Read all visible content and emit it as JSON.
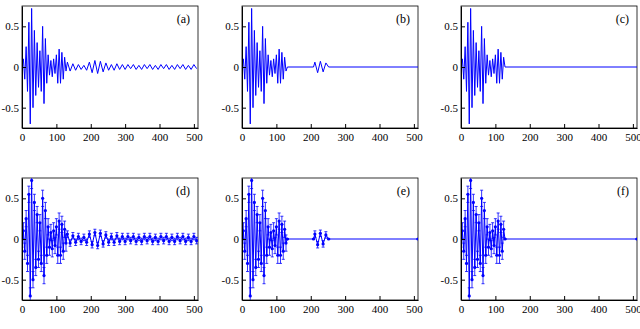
{
  "chart_data": [
    {
      "type": "line",
      "label": "(a)",
      "color": "#0000ff",
      "marker": "none",
      "xlim": [
        0,
        512
      ],
      "ylim": [
        -0.75,
        0.75
      ],
      "xticks": [
        0,
        100,
        200,
        300,
        400,
        500
      ],
      "yticks": [
        -0.5,
        0,
        0.5
      ],
      "x": [
        0,
        4,
        8,
        12,
        16,
        20,
        24,
        28,
        32,
        36,
        40,
        44,
        48,
        52,
        56,
        60,
        64,
        68,
        72,
        76,
        80,
        84,
        88,
        92,
        96,
        100,
        104,
        108,
        112,
        116,
        120,
        124,
        128,
        132,
        140,
        148,
        156,
        164,
        172,
        180,
        188,
        196,
        204,
        212,
        220,
        228,
        236,
        244,
        252,
        260,
        268,
        276,
        284,
        292,
        300,
        308,
        316,
        324,
        332,
        340,
        348,
        356,
        364,
        372,
        380,
        388,
        396,
        404,
        412,
        420,
        428,
        436,
        444,
        452,
        460,
        468,
        476,
        484,
        492,
        500,
        508
      ],
      "values": [
        0,
        0.1,
        -0.15,
        0.25,
        -0.3,
        0.55,
        -0.7,
        0.72,
        -0.5,
        0.45,
        -0.35,
        0.3,
        -0.25,
        0.2,
        -0.3,
        0.5,
        -0.45,
        0.35,
        -0.2,
        0.15,
        -0.1,
        0.08,
        -0.12,
        0.1,
        -0.08,
        0.15,
        -0.2,
        0.22,
        -0.2,
        0.18,
        -0.15,
        0.12,
        -0.05,
        0.06,
        -0.05,
        0.04,
        -0.04,
        0.03,
        -0.03,
        0.02,
        -0.04,
        0.06,
        -0.07,
        0.08,
        -0.08,
        0.07,
        -0.06,
        0.05,
        -0.04,
        0.03,
        -0.04,
        0.04,
        -0.03,
        0.03,
        -0.03,
        0.03,
        -0.02,
        0.03,
        -0.03,
        0.02,
        -0.03,
        0.03,
        -0.02,
        0.03,
        -0.03,
        0.02,
        -0.03,
        0.03,
        -0.02,
        0.03,
        -0.03,
        0.02,
        -0.03,
        0.03,
        -0.02,
        0.03,
        -0.03,
        0.02,
        -0.03,
        0.03,
        -0.02
      ]
    },
    {
      "type": "line",
      "label": "(b)",
      "color": "#0000ff",
      "marker": "none",
      "xlim": [
        0,
        512
      ],
      "ylim": [
        -0.75,
        0.75
      ],
      "xticks": [
        0,
        100,
        200,
        300,
        400,
        500
      ],
      "yticks": [
        -0.5,
        0,
        0.5
      ],
      "x": [
        0,
        4,
        8,
        12,
        16,
        20,
        24,
        28,
        32,
        36,
        40,
        44,
        48,
        52,
        56,
        60,
        64,
        68,
        72,
        76,
        80,
        84,
        88,
        92,
        96,
        100,
        104,
        108,
        112,
        116,
        120,
        124,
        128,
        132,
        208,
        212,
        220,
        228,
        236,
        244,
        252,
        512
      ],
      "values": [
        0,
        0.1,
        -0.15,
        0.25,
        -0.3,
        0.55,
        -0.7,
        0.72,
        -0.5,
        0.45,
        -0.35,
        0.3,
        -0.25,
        0.2,
        -0.3,
        0.5,
        -0.45,
        0.35,
        -0.2,
        0.15,
        -0.1,
        0.08,
        -0.12,
        0.1,
        -0.08,
        0.15,
        -0.2,
        0.22,
        -0.2,
        0.18,
        -0.15,
        0.12,
        -0.05,
        0,
        0,
        0.06,
        -0.07,
        0.07,
        -0.06,
        0.05,
        0,
        0
      ]
    },
    {
      "type": "line",
      "label": "(c)",
      "color": "#0000ff",
      "marker": "none",
      "xlim": [
        0,
        512
      ],
      "ylim": [
        -0.75,
        0.75
      ],
      "xticks": [
        0,
        100,
        200,
        300,
        400,
        500
      ],
      "yticks": [
        -0.5,
        0,
        0.5
      ],
      "x": [
        0,
        4,
        8,
        12,
        16,
        20,
        24,
        28,
        32,
        36,
        40,
        44,
        48,
        52,
        56,
        60,
        64,
        68,
        72,
        76,
        80,
        84,
        88,
        92,
        96,
        100,
        104,
        108,
        112,
        116,
        120,
        124,
        128,
        512
      ],
      "values": [
        0,
        0.1,
        -0.15,
        0.25,
        -0.3,
        0.55,
        -0.7,
        0.72,
        -0.5,
        0.45,
        -0.35,
        0.3,
        -0.25,
        0.2,
        -0.3,
        0.5,
        -0.45,
        0.35,
        -0.2,
        0.15,
        -0.1,
        0.08,
        -0.12,
        0.1,
        -0.08,
        0.15,
        -0.2,
        0.22,
        -0.2,
        0.18,
        -0.15,
        0.12,
        0,
        0
      ]
    },
    {
      "type": "line",
      "label": "(d)",
      "color": "#0000ff",
      "marker": "point",
      "xlim": [
        0,
        512
      ],
      "ylim": [
        -0.75,
        0.75
      ],
      "xticks": [
        0,
        100,
        200,
        300,
        400,
        500
      ],
      "yticks": [
        -0.5,
        0,
        0.5
      ],
      "x": [
        0,
        4,
        8,
        12,
        16,
        20,
        24,
        28,
        32,
        36,
        40,
        44,
        48,
        52,
        56,
        60,
        64,
        68,
        72,
        76,
        80,
        84,
        88,
        92,
        96,
        100,
        104,
        108,
        112,
        116,
        120,
        124,
        128,
        132,
        140,
        148,
        156,
        164,
        172,
        180,
        188,
        196,
        204,
        212,
        220,
        228,
        236,
        244,
        252,
        260,
        268,
        276,
        284,
        292,
        300,
        308,
        316,
        324,
        332,
        340,
        348,
        356,
        364,
        372,
        380,
        388,
        396,
        404,
        412,
        420,
        428,
        436,
        444,
        452,
        460,
        468,
        476,
        484,
        492,
        500,
        508
      ],
      "values": [
        0,
        0.1,
        -0.15,
        0.25,
        -0.3,
        0.55,
        -0.7,
        0.72,
        -0.5,
        0.45,
        -0.35,
        0.3,
        -0.25,
        0.2,
        -0.3,
        0.5,
        -0.45,
        0.35,
        -0.2,
        0.15,
        -0.1,
        0.08,
        -0.12,
        0.1,
        -0.08,
        0.15,
        -0.2,
        0.22,
        -0.2,
        0.18,
        -0.15,
        0.12,
        -0.05,
        0.06,
        -0.05,
        0.04,
        -0.04,
        0.03,
        -0.03,
        0.02,
        -0.04,
        0.06,
        -0.07,
        0.08,
        -0.08,
        0.07,
        -0.06,
        0.05,
        -0.04,
        0.03,
        -0.04,
        0.04,
        -0.03,
        0.03,
        -0.03,
        0.03,
        -0.02,
        0.03,
        -0.03,
        0.02,
        -0.03,
        0.03,
        -0.02,
        0.03,
        -0.03,
        0.02,
        -0.03,
        0.03,
        -0.02,
        0.03,
        -0.03,
        0.02,
        -0.03,
        0.03,
        -0.02,
        0.03,
        -0.03,
        0.02,
        -0.03,
        0.03,
        -0.02
      ],
      "errors": [
        0.1,
        0.1,
        0.1,
        0.1,
        0.1,
        0.1,
        0.1,
        0.1,
        0.1,
        0.1,
        0.1,
        0.1,
        0.1,
        0.1,
        0.1,
        0.1,
        0.1,
        0.1,
        0.1,
        0.1,
        0.1,
        0.1,
        0.1,
        0.1,
        0.1,
        0.1,
        0.1,
        0.1,
        0.1,
        0.1,
        0.1,
        0.1,
        0.1,
        0.04,
        0.04,
        0.04,
        0.04,
        0.04,
        0.04,
        0.04,
        0.04,
        0.04,
        0.04,
        0.04,
        0.04,
        0.04,
        0.04,
        0.04,
        0.04,
        0.04,
        0.04,
        0.04,
        0.04,
        0.04,
        0.04,
        0.04,
        0.04,
        0.04,
        0.04,
        0.04,
        0.04,
        0.04,
        0.04,
        0.04,
        0.04,
        0.04,
        0.04,
        0.04,
        0.04,
        0.04,
        0.04,
        0.04,
        0.04,
        0.04,
        0.04,
        0.04,
        0.04,
        0.04,
        0.04,
        0.04,
        0.04
      ]
    },
    {
      "type": "line",
      "label": "(e)",
      "color": "#0000ff",
      "marker": "point",
      "xlim": [
        0,
        512
      ],
      "ylim": [
        -0.75,
        0.75
      ],
      "xticks": [
        0,
        100,
        200,
        300,
        400,
        500
      ],
      "yticks": [
        -0.5,
        0,
        0.5
      ],
      "x": [
        0,
        4,
        8,
        12,
        16,
        20,
        24,
        28,
        32,
        36,
        40,
        44,
        48,
        52,
        56,
        60,
        64,
        68,
        72,
        76,
        80,
        84,
        88,
        92,
        96,
        100,
        104,
        108,
        112,
        116,
        120,
        124,
        128,
        132,
        208,
        212,
        220,
        228,
        236,
        244,
        252,
        512
      ],
      "values": [
        0,
        0.1,
        -0.15,
        0.25,
        -0.3,
        0.55,
        -0.7,
        0.72,
        -0.5,
        0.45,
        -0.35,
        0.3,
        -0.25,
        0.2,
        -0.3,
        0.5,
        -0.45,
        0.35,
        -0.2,
        0.15,
        -0.1,
        0.08,
        -0.12,
        0.1,
        -0.08,
        0.15,
        -0.2,
        0.22,
        -0.2,
        0.18,
        -0.15,
        0.12,
        -0.05,
        0,
        0,
        0.06,
        -0.07,
        0.07,
        -0.06,
        0.05,
        0,
        0
      ],
      "errors": [
        0.1,
        0.1,
        0.1,
        0.1,
        0.1,
        0.1,
        0.1,
        0.1,
        0.1,
        0.1,
        0.1,
        0.1,
        0.1,
        0.1,
        0.1,
        0.1,
        0.1,
        0.1,
        0.1,
        0.1,
        0.1,
        0.1,
        0.1,
        0.1,
        0.1,
        0.1,
        0.1,
        0.1,
        0.1,
        0.1,
        0.1,
        0.1,
        0.1,
        0,
        0,
        0.04,
        0.04,
        0.04,
        0.04,
        0.04,
        0,
        0
      ]
    },
    {
      "type": "line",
      "label": "(f)",
      "color": "#0000ff",
      "marker": "point",
      "xlim": [
        0,
        512
      ],
      "ylim": [
        -0.75,
        0.75
      ],
      "xticks": [
        0,
        100,
        200,
        300,
        400,
        500
      ],
      "yticks": [
        -0.5,
        0,
        0.5
      ],
      "x": [
        0,
        4,
        8,
        12,
        16,
        20,
        24,
        28,
        32,
        36,
        40,
        44,
        48,
        52,
        56,
        60,
        64,
        68,
        72,
        76,
        80,
        84,
        88,
        92,
        96,
        100,
        104,
        108,
        112,
        116,
        120,
        124,
        128,
        512
      ],
      "values": [
        0,
        0.1,
        -0.15,
        0.25,
        -0.3,
        0.55,
        -0.7,
        0.72,
        -0.5,
        0.45,
        -0.35,
        0.3,
        -0.25,
        0.2,
        -0.3,
        0.5,
        -0.45,
        0.35,
        -0.2,
        0.15,
        -0.1,
        0.08,
        -0.12,
        0.1,
        -0.08,
        0.15,
        -0.2,
        0.22,
        -0.2,
        0.18,
        -0.15,
        0.12,
        0,
        0
      ],
      "errors": [
        0.1,
        0.1,
        0.1,
        0.1,
        0.1,
        0.1,
        0.1,
        0.1,
        0.1,
        0.1,
        0.1,
        0.1,
        0.1,
        0.1,
        0.1,
        0.1,
        0.1,
        0.1,
        0.1,
        0.1,
        0.1,
        0.1,
        0.1,
        0.1,
        0.1,
        0.1,
        0.1,
        0.1,
        0.1,
        0.1,
        0.1,
        0.1,
        0,
        0
      ]
    }
  ]
}
